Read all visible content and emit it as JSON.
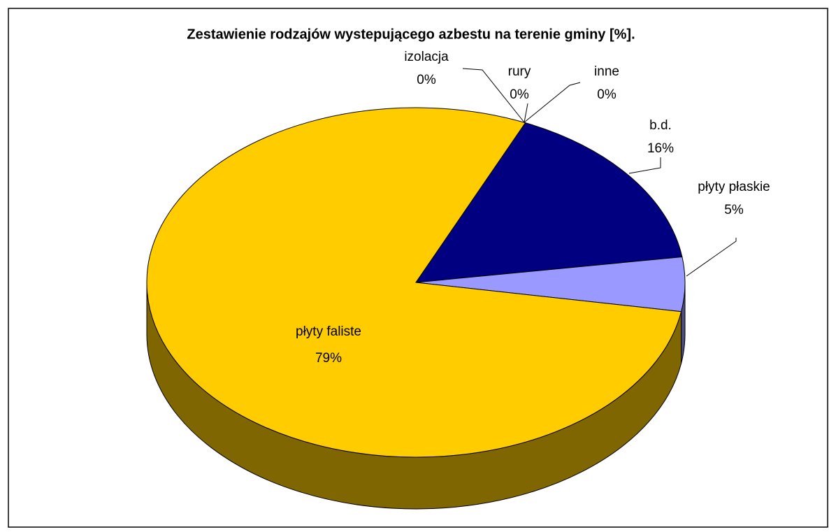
{
  "chart_data": {
    "type": "pie3d",
    "title": "Zestawienie rodzajów wystepującego azbestu na terenie gminy [%].",
    "categories": [
      "izolacja",
      "rury",
      "inne",
      "b.d.",
      "płyty płaskie",
      "płyty faliste"
    ],
    "values": [
      0,
      0,
      0,
      16,
      5,
      79
    ],
    "value_labels": [
      "0%",
      "0%",
      "0%",
      "16%",
      "5%",
      "79%"
    ],
    "colors": [
      "#99ccff",
      "#ff99cc",
      "#ffff99",
      "#000080",
      "#9999ff",
      "#ffcc00"
    ]
  }
}
